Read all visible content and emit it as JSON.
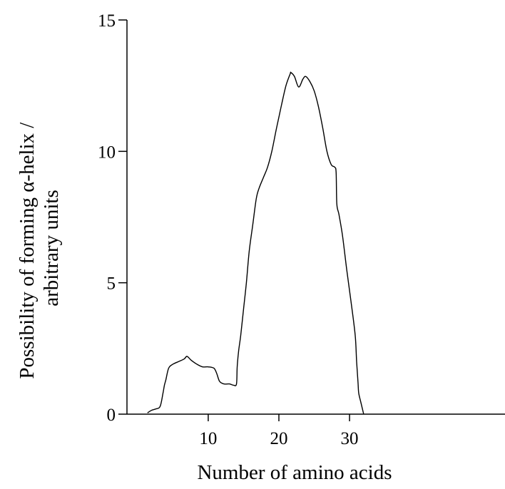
{
  "chart_data": {
    "type": "line",
    "xlabel": "Number of amino acids",
    "ylabel_lines": [
      "Possibility of forming α-helix /",
      "arbitrary units"
    ],
    "xlim": [
      -1.5,
      52
    ],
    "ylim": [
      0,
      15
    ],
    "x_ticks": [
      10,
      20,
      30
    ],
    "x_tick_labels": [
      "10",
      "20",
      "30"
    ],
    "y_ticks": [
      0,
      5,
      10,
      15
    ],
    "y_tick_labels": [
      "0",
      "5",
      "10",
      "15"
    ],
    "grid": false,
    "series": [
      {
        "x": [
          1.4,
          2.0,
          2.6,
          3.2,
          3.6,
          3.8,
          4.0,
          4.4,
          5.0,
          5.8,
          6.6,
          7.0,
          7.6,
          8.4,
          9.2,
          10.0,
          10.8,
          11.2,
          11.6,
          12.2,
          13.0,
          13.6,
          14.0,
          14.1,
          14.3,
          14.6,
          15.0,
          15.4,
          15.8,
          16.3,
          16.8,
          17.2,
          17.8,
          18.4,
          19.0,
          19.6,
          20.0,
          20.4,
          21.0,
          21.6,
          21.7,
          22.2,
          22.8,
          23.4,
          23.8,
          24.4,
          25.0,
          25.6,
          26.2,
          26.8,
          27.4,
          27.9,
          28.1,
          28.2,
          28.5,
          29.0,
          29.6,
          30.2,
          30.8,
          31.0,
          31.2,
          31.3,
          31.6,
          32.0
        ],
        "y": [
          0.05,
          0.15,
          0.2,
          0.3,
          0.8,
          1.1,
          1.3,
          1.75,
          1.9,
          2.0,
          2.1,
          2.2,
          2.05,
          1.9,
          1.8,
          1.8,
          1.75,
          1.55,
          1.25,
          1.15,
          1.15,
          1.1,
          1.15,
          1.8,
          2.4,
          3.0,
          4.0,
          5.0,
          6.2,
          7.2,
          8.2,
          8.6,
          9.0,
          9.4,
          10.0,
          10.8,
          11.3,
          11.8,
          12.5,
          12.95,
          13.0,
          12.85,
          12.45,
          12.75,
          12.85,
          12.65,
          12.3,
          11.7,
          10.9,
          10.0,
          9.5,
          9.4,
          9.2,
          8.0,
          7.6,
          6.8,
          5.5,
          4.3,
          3.0,
          2.0,
          1.2,
          0.8,
          0.45,
          0.0
        ]
      }
    ]
  }
}
